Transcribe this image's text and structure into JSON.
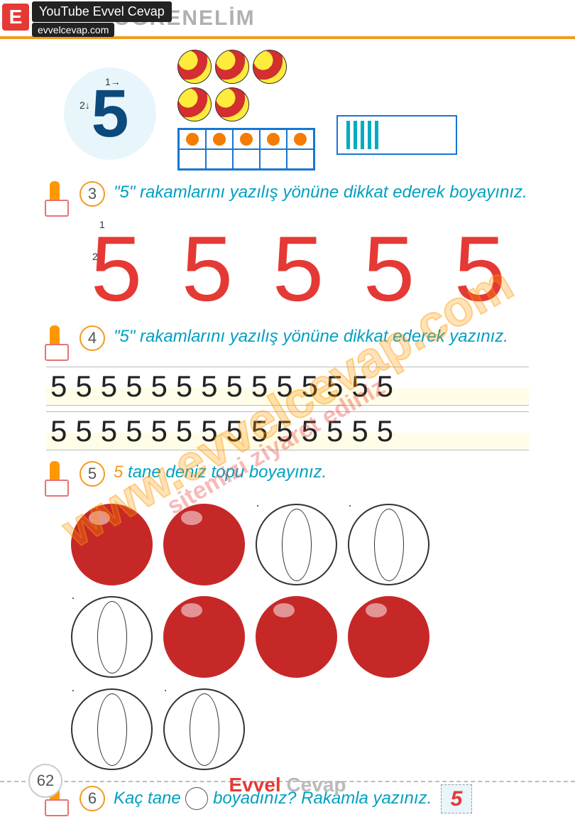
{
  "header": {
    "title": "ÖĞRENELİM"
  },
  "badge": {
    "letter": "E",
    "yt": "YouTube Evvel Cevap",
    "site": "evvelcevap.com"
  },
  "intro": {
    "number": "5",
    "stroke1": "1→",
    "stroke2": "2↓",
    "tenframe_filled": 5,
    "tally_count": 5
  },
  "tasks": {
    "t3": {
      "num": "3",
      "text": "\"5\" rakamlarını yazılış yönüne dikkat ederek boyayınız."
    },
    "t4": {
      "num": "4",
      "text": "\"5\" rakamlarını yazılış yönüne dikkat ederek yazınız."
    },
    "t5": {
      "num": "5",
      "text": "5 tane deniz topu boyayınız."
    },
    "t6": {
      "num": "6",
      "text_a": "Kaç tane",
      "text_b": "boyadınız? Rakamla yazınız.",
      "answer": "5"
    }
  },
  "big_fives": {
    "count": 5,
    "glyph": "5",
    "color": "#e53935",
    "stroke1": "1",
    "stroke2": "2"
  },
  "writing_lines": {
    "rows": 2,
    "per_row": 14,
    "glyph": "5"
  },
  "balls": {
    "filled": 5,
    "outline": 5,
    "fill_color": "#c62828"
  },
  "page": {
    "number": "62"
  },
  "footer": {
    "brand1": "Evvel",
    "brand2": " Cevap"
  },
  "watermark": {
    "w1": "www.evvelcevap.com",
    "w2": "sitemizi ziyaret ediniz"
  }
}
